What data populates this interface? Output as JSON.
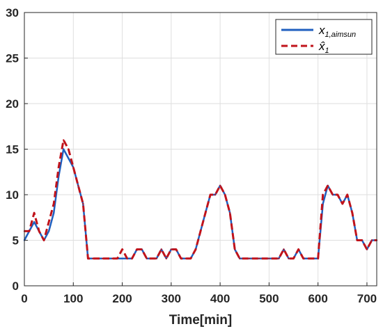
{
  "chart_data": {
    "type": "line",
    "title": "",
    "xlabel": "Time[min]",
    "ylabel": "",
    "xlim": [
      0,
      720
    ],
    "ylim": [
      0,
      30
    ],
    "xticks": [
      0,
      100,
      200,
      300,
      400,
      500,
      600,
      700
    ],
    "yticks": [
      0,
      5,
      10,
      15,
      20,
      25,
      30
    ],
    "grid": true,
    "legend_position": "top-right",
    "series": [
      {
        "name": "x_{1,aimsun}",
        "legend_label_main": "x",
        "legend_label_sub": "1,aimsun",
        "color": "#1f5fbf",
        "line_style": "solid",
        "x": [
          0,
          10,
          20,
          30,
          40,
          50,
          60,
          70,
          80,
          90,
          100,
          110,
          120,
          130,
          140,
          150,
          160,
          170,
          180,
          190,
          200,
          210,
          220,
          230,
          240,
          250,
          260,
          270,
          280,
          290,
          300,
          310,
          320,
          330,
          340,
          350,
          360,
          370,
          380,
          390,
          400,
          410,
          420,
          430,
          440,
          450,
          460,
          470,
          480,
          490,
          500,
          510,
          520,
          530,
          540,
          550,
          560,
          570,
          580,
          590,
          600,
          610,
          620,
          630,
          640,
          650,
          660,
          670,
          680,
          690,
          700,
          710,
          720
        ],
        "y": [
          5,
          6,
          7,
          6,
          5,
          6,
          8,
          12,
          15,
          14,
          13,
          11,
          9,
          3,
          3,
          3,
          3,
          3,
          3,
          3,
          3,
          3,
          3,
          4,
          4,
          3,
          3,
          3,
          4,
          3,
          4,
          4,
          3,
          3,
          3,
          4,
          6,
          8,
          10,
          10,
          11,
          10,
          8,
          4,
          3,
          3,
          3,
          3,
          3,
          3,
          3,
          3,
          3,
          4,
          3,
          3,
          4,
          3,
          3,
          3,
          3,
          9,
          11,
          10,
          10,
          9,
          10,
          8,
          5,
          5,
          4,
          5,
          5
        ]
      },
      {
        "name": "x̂_1",
        "legend_label_main": "x̂",
        "legend_label_sub": "1",
        "color": "#c0131b",
        "line_style": "dashed",
        "x": [
          0,
          10,
          20,
          30,
          40,
          50,
          60,
          70,
          80,
          90,
          100,
          110,
          120,
          130,
          140,
          150,
          160,
          170,
          180,
          190,
          200,
          210,
          220,
          230,
          240,
          250,
          260,
          270,
          280,
          290,
          300,
          310,
          320,
          330,
          340,
          350,
          360,
          370,
          380,
          390,
          400,
          410,
          420,
          430,
          440,
          450,
          460,
          470,
          480,
          490,
          500,
          510,
          520,
          530,
          540,
          550,
          560,
          570,
          580,
          590,
          600,
          610,
          620,
          630,
          640,
          650,
          660,
          670,
          680,
          690,
          700,
          710,
          720
        ],
        "y": [
          6,
          6,
          8,
          6,
          5,
          7,
          9,
          13,
          16,
          15,
          13,
          11,
          9,
          3,
          3,
          3,
          3,
          3,
          3,
          3,
          4,
          3,
          3,
          4,
          4,
          3,
          3,
          3,
          4,
          3,
          4,
          4,
          3,
          3,
          3,
          4,
          6,
          8,
          10,
          10,
          11,
          10,
          8,
          4,
          3,
          3,
          3,
          3,
          3,
          3,
          3,
          3,
          3,
          4,
          3,
          3,
          4,
          3,
          3,
          3,
          3,
          10,
          11,
          10,
          10,
          9,
          10,
          8,
          5,
          5,
          4,
          5,
          5
        ]
      }
    ]
  }
}
